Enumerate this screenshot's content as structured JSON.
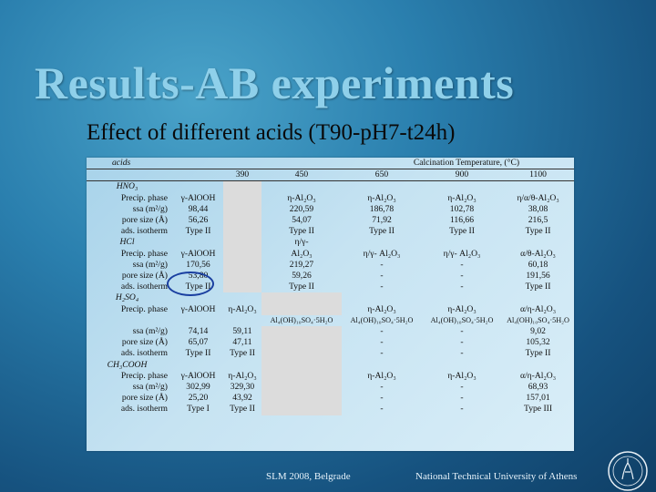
{
  "slide": {
    "title": "Results-AB experiments",
    "subtitle": "Effect of different acids (T90-pH7-t24h)"
  },
  "table": {
    "header": {
      "acids": "acids",
      "calcination": "Calcination Temperature, (°C)",
      "temps": [
        "390",
        "450",
        "650",
        "900",
        "1100"
      ]
    },
    "hno3": {
      "name": "HNO₃",
      "rows": [
        [
          "Precip. phase",
          "γ-AlOOH",
          "",
          "η-Al₂O₃",
          "η-Al₂O₃",
          "η-Al₂O₃",
          "η/α/θ-Al₂O₃"
        ],
        [
          "ssa (m²/g)",
          "98,44",
          "",
          "220,59",
          "186,78",
          "102,78",
          "38,08"
        ],
        [
          "pore size (Å)",
          "56,26",
          "",
          "54,07",
          "71,92",
          "116,66",
          "216,5"
        ],
        [
          "ads. isotherm",
          "Type II",
          "",
          "Type II",
          "Type II",
          "Type II",
          "Type II"
        ]
      ]
    },
    "hcl": {
      "name": "HCl",
      "extra": "η/γ-",
      "rows": [
        [
          "Precip. phase",
          "γ-AlOOH",
          "",
          "Al₂O₃",
          "η/γ- Al₂O₃",
          "η/γ- Al₂O₃",
          "α/θ-Al₂O₃"
        ],
        [
          "ssa (m²/g)",
          "170,56",
          "",
          "219,27",
          "-",
          "-",
          "60,18"
        ],
        [
          "pore size (Å)",
          "53,80",
          "",
          "59,26",
          "-",
          "-",
          "191,56"
        ],
        [
          "ads. isotherm",
          "Type II",
          "",
          "Type II",
          "-",
          "-",
          "Type II"
        ]
      ]
    },
    "h2so4": {
      "name": "H₂SO₄",
      "rows": [
        [
          "Precip. phase",
          "γ-AlOOH",
          "η-Al₂O₃",
          "",
          "η-Al₂O₃",
          "η-Al₂O₃",
          "α/η-Al₂O₃"
        ],
        [
          "",
          "",
          "",
          "Al₄(OH)₁₀SO₄·5H₂O",
          "Al₄(OH)₁₀SO₄·5H₂O",
          "Al₄(OH)₁₀SO₄·5H₂O",
          "Al₄(OH)₁₀SO₄·5H₂O"
        ],
        [
          "ssa (m²/g)",
          "74,14",
          "59,11",
          "",
          "-",
          "-",
          "9,02"
        ],
        [
          "pore size (Å)",
          "65,07",
          "47,11",
          "",
          "-",
          "-",
          "105,32"
        ],
        [
          "ads. isotherm",
          "Type II",
          "Type II",
          "",
          "-",
          "-",
          "Type II"
        ]
      ]
    },
    "ch3cooh": {
      "name": "CH₃COOH",
      "rows": [
        [
          "Precip. phase",
          "γ-AlOOH",
          "η-Al₂O₃",
          "",
          "η-Al₂O₃",
          "η-Al₂O₃",
          "α/η-Al₂O₃"
        ],
        [
          "ssa (m²/g)",
          "302,99",
          "329,30",
          "",
          "-",
          "-",
          "68,93"
        ],
        [
          "pore size (Å)",
          "25,20",
          "43,92",
          "",
          "-",
          "-",
          "157,01"
        ],
        [
          "ads. isotherm",
          "Type I",
          "Type II",
          "",
          "-",
          "-",
          "Type III"
        ]
      ]
    }
  },
  "footer": {
    "left": "SLM 2008, Belgrade",
    "right": "National Technical University of Athens"
  },
  "icons": {
    "logo": "ntua-seal-logo"
  }
}
